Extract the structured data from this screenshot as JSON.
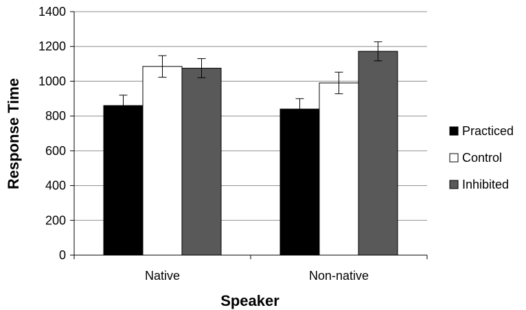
{
  "chart_data": {
    "type": "bar",
    "title": "",
    "xlabel": "Speaker",
    "ylabel": "Response Time",
    "categories": [
      "Native",
      "Non-native"
    ],
    "ylim": [
      0,
      1400
    ],
    "yticks": [
      0,
      200,
      400,
      600,
      800,
      1000,
      1200,
      1400
    ],
    "ytick_labels": [
      "0",
      "200",
      "400",
      "600",
      "800",
      "1000",
      "1200",
      "1400"
    ],
    "grid": "horizontal",
    "legend_position": "right",
    "series": [
      {
        "name": "Practiced",
        "color": "#000000",
        "values": [
          860,
          840
        ],
        "errors": [
          60,
          60
        ]
      },
      {
        "name": "Control",
        "color": "#ffffff",
        "values": [
          1085,
          990
        ],
        "errors": [
          62,
          62
        ]
      },
      {
        "name": "Inhibited",
        "color": "#595959",
        "values": [
          1075,
          1172
        ],
        "errors": [
          55,
          55
        ]
      }
    ]
  }
}
